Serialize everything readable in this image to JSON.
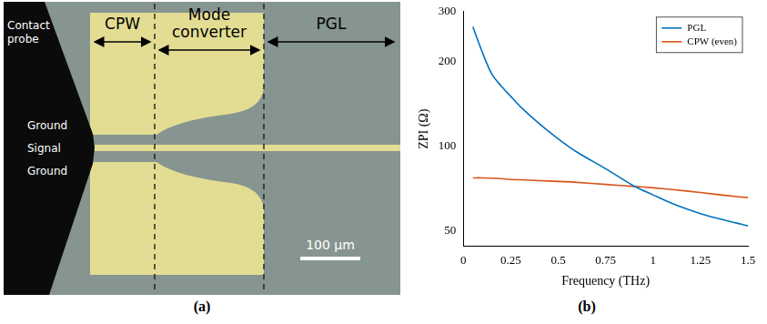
{
  "photo": {
    "panel_label": "(a)",
    "regions": [
      "CPW",
      "Mode converter",
      "PGL"
    ],
    "probe_labels": [
      "Contact probe",
      "Ground",
      "Signal",
      "Ground"
    ],
    "scale_bar": "100 µm"
  },
  "chart_data": {
    "type": "line",
    "panel_label": "(b)",
    "x_label": "Frequency (THz)",
    "y_label": "ZPI (Ω)",
    "x": [
      0.05,
      0.1,
      0.15,
      0.2,
      0.25,
      0.3,
      0.4,
      0.5,
      0.6,
      0.75,
      0.9,
      1,
      1.1,
      1.25,
      1.4,
      1.5
    ],
    "series": [
      {
        "name": "PGL",
        "color": "#0072bd",
        "values": [
          265,
          215,
          180,
          163,
          150,
          138,
          120,
          106,
          95,
          83,
          72,
          67,
          62.5,
          57.5,
          54,
          52
        ]
      },
      {
        "name": "CPW (even)",
        "color": "#d95319",
        "values": [
          77,
          77,
          76.8,
          76.5,
          76,
          75.8,
          75.3,
          74.8,
          74.2,
          73,
          71.8,
          71,
          70,
          68.3,
          66.5,
          65.5
        ]
      }
    ],
    "xlim": [
      0,
      1.5
    ],
    "xticks": [
      0,
      0.25,
      0.5,
      0.75,
      1,
      1.25,
      1.5
    ],
    "ylim": [
      44,
      300
    ],
    "yticks": [
      50,
      100,
      200,
      300
    ],
    "log": "y",
    "grid": false,
    "legend": "upper right"
  }
}
